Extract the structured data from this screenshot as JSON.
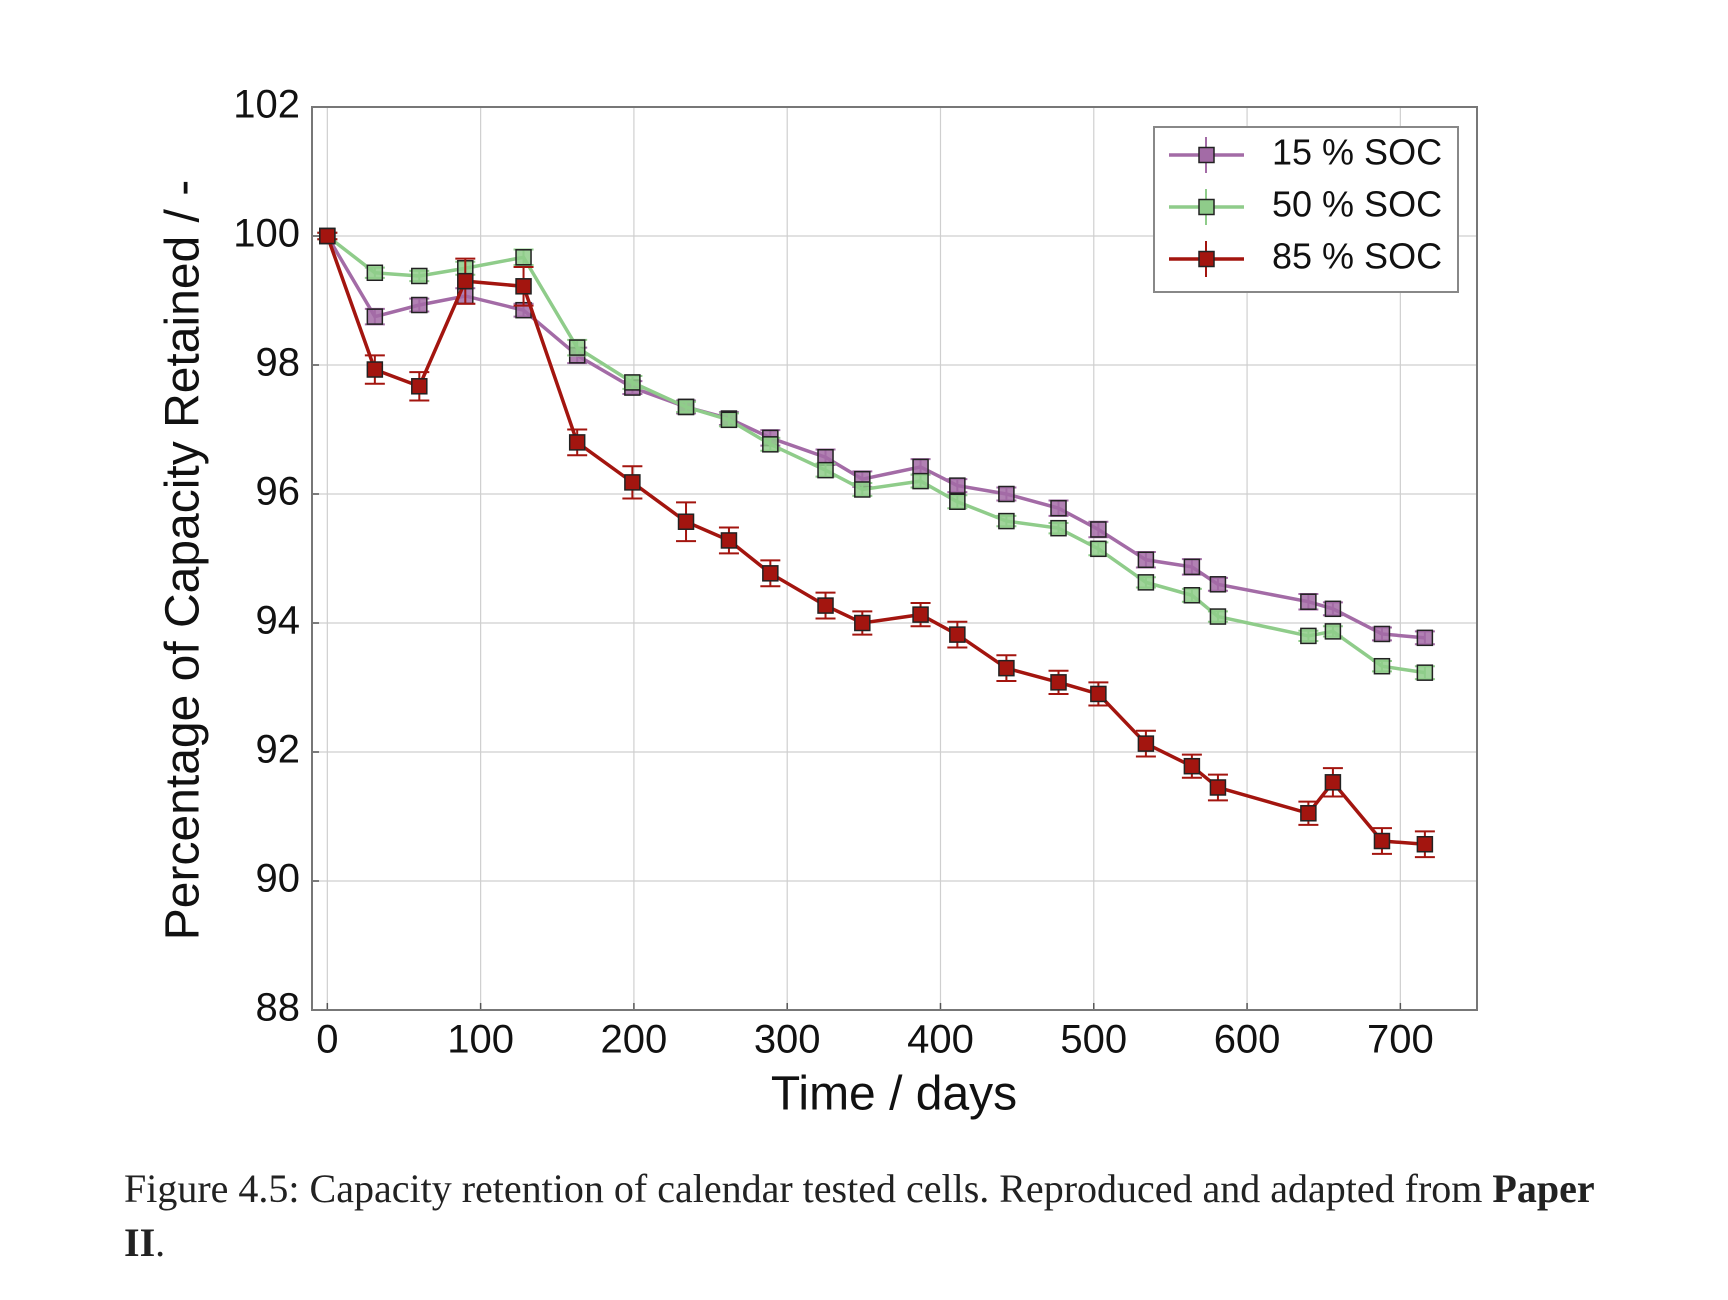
{
  "chart_data": {
    "type": "line",
    "xlabel": "Time / days",
    "ylabel": "Percentage of Capacity Retained / -",
    "x": [
      0,
      31,
      60,
      90,
      128,
      163,
      199,
      234,
      262,
      289,
      325,
      349,
      387,
      411,
      443,
      477,
      503,
      534,
      564,
      581,
      640,
      656,
      688,
      716
    ],
    "series": [
      {
        "name": "15 % SOC",
        "color": "#a36ba6",
        "values": [
          100,
          98.75,
          98.93,
          99.07,
          98.85,
          98.15,
          97.65,
          97.35,
          97.17,
          96.87,
          96.57,
          96.23,
          96.42,
          96.13,
          96.0,
          95.78,
          95.45,
          94.98,
          94.87,
          94.6,
          94.33,
          94.22,
          93.83,
          93.77
        ],
        "errors": [
          0.05,
          0.12,
          0.1,
          0.12,
          0.1,
          0.12,
          0.1,
          0.1,
          0.1,
          0.12,
          0.12,
          0.12,
          0.12,
          0.1,
          0.1,
          0.12,
          0.12,
          0.12,
          0.12,
          0.1,
          0.12,
          0.1,
          0.1,
          0.1
        ]
      },
      {
        "name": "50 % SOC",
        "color": "#8fcc8a",
        "values": [
          100,
          99.43,
          99.38,
          99.5,
          99.67,
          98.27,
          97.73,
          97.35,
          97.15,
          96.77,
          96.37,
          96.07,
          96.2,
          95.88,
          95.58,
          95.47,
          95.15,
          94.63,
          94.43,
          94.1,
          93.8,
          93.87,
          93.33,
          93.23
        ],
        "errors": [
          0.05,
          0.08,
          0.08,
          0.1,
          0.12,
          0.12,
          0.1,
          0.08,
          0.1,
          0.1,
          0.1,
          0.1,
          0.1,
          0.1,
          0.08,
          0.08,
          0.1,
          0.08,
          0.1,
          0.08,
          0.08,
          0.08,
          0.08,
          0.1
        ]
      },
      {
        "name": "85 % SOC",
        "color": "#a3150f",
        "values": [
          100,
          97.93,
          97.67,
          99.3,
          99.22,
          96.8,
          96.18,
          95.57,
          95.28,
          94.77,
          94.27,
          94.0,
          94.13,
          93.82,
          93.3,
          93.08,
          92.9,
          92.13,
          91.78,
          91.45,
          91.05,
          91.53,
          90.62,
          90.57
        ],
        "errors": [
          0.05,
          0.22,
          0.22,
          0.35,
          0.3,
          0.2,
          0.25,
          0.3,
          0.2,
          0.2,
          0.2,
          0.18,
          0.18,
          0.2,
          0.2,
          0.18,
          0.18,
          0.2,
          0.18,
          0.2,
          0.18,
          0.22,
          0.2,
          0.2
        ]
      }
    ],
    "xlim": [
      -10,
      750
    ],
    "ylim": [
      88,
      102
    ],
    "xticks": [
      0,
      100,
      200,
      300,
      400,
      500,
      600,
      700
    ],
    "yticks": [
      88,
      90,
      92,
      94,
      96,
      98,
      100,
      102
    ],
    "grid": true,
    "legend": "upper right"
  },
  "caption": {
    "text": "Figure 4.5:  Capacity retention of calendar tested cells.  Reproduced and adapted from",
    "bold": "Paper II",
    "end": "."
  }
}
